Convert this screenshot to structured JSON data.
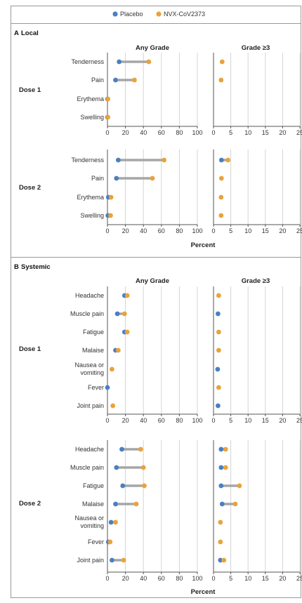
{
  "colors": {
    "placebo": "#4a7fc1",
    "vaccine": "#e8a33a",
    "connector": "#a6a6a6",
    "grid": "#d4d4d4",
    "axis": "#555555",
    "frame": "#999999"
  },
  "legend": {
    "placebo": "Placebo",
    "vaccine": "NVX-CoV2373"
  },
  "shared": {
    "any_grade_label": "Any Grade",
    "grade3_label": "Grade ≥3",
    "xlabel": "Percent",
    "dose1_label": "Dose 1",
    "dose2_label": "Dose 2"
  },
  "chart_data": [
    {
      "type": "dumbbell",
      "section_letter": "A",
      "section_title": "Local",
      "any_grade_xlim": [
        0,
        100
      ],
      "any_grade_ticks": [
        0,
        20,
        40,
        60,
        80,
        100
      ],
      "grade3_xlim": [
        0,
        25
      ],
      "grade3_ticks": [
        0,
        5,
        10,
        15,
        20,
        25
      ],
      "dose1": {
        "categories": [
          "Tenderness",
          "Pain",
          "Erythema",
          "Swelling"
        ],
        "any_grade": {
          "placebo": [
            13,
            9,
            0,
            0
          ],
          "vaccine": [
            46,
            30,
            0.5,
            0.5
          ]
        },
        "grade3": {
          "placebo": [
            null,
            null,
            null,
            null
          ],
          "vaccine": [
            2.5,
            2.2,
            null,
            null
          ]
        }
      },
      "dose2": {
        "categories": [
          "Tenderness",
          "Pain",
          "Erythema",
          "Swelling"
        ],
        "any_grade": {
          "placebo": [
            12,
            10,
            1,
            0.5
          ],
          "vaccine": [
            63,
            50,
            4,
            3.5
          ]
        },
        "grade3": {
          "placebo": [
            2.3,
            null,
            null,
            null
          ],
          "vaccine": [
            4.2,
            2.3,
            2.2,
            2.2
          ]
        }
      }
    },
    {
      "type": "dumbbell",
      "section_letter": "B",
      "section_title": "Systemic",
      "any_grade_xlim": [
        0,
        100
      ],
      "any_grade_ticks": [
        0,
        20,
        40,
        60,
        80,
        100
      ],
      "grade3_xlim": [
        0,
        25
      ],
      "grade3_ticks": [
        0,
        5,
        10,
        15,
        20,
        25
      ],
      "dose1": {
        "categories": [
          "Headache",
          "Muscle pain",
          "Fatigue",
          "Malaise",
          "Nausea or vomiting",
          "Fever",
          "Joint pain"
        ],
        "any_grade": {
          "placebo": [
            19,
            11,
            19,
            9,
            null,
            0,
            null
          ],
          "vaccine": [
            22,
            19,
            22,
            12,
            5,
            null,
            6
          ]
        },
        "grade3": {
          "placebo": [
            null,
            1.3,
            null,
            null,
            1.2,
            null,
            1.3
          ],
          "vaccine": [
            1.5,
            null,
            1.5,
            1.5,
            null,
            1.5,
            null
          ]
        }
      },
      "dose2": {
        "categories": [
          "Headache",
          "Muscle pain",
          "Fatigue",
          "Malaise",
          "Nausea or vomiting",
          "Fever",
          "Joint pain"
        ],
        "any_grade": {
          "placebo": [
            16,
            10,
            17,
            9,
            4,
            1,
            5
          ],
          "vaccine": [
            37,
            40,
            41,
            32,
            9,
            3,
            18
          ]
        },
        "grade3": {
          "placebo": [
            2.2,
            2.2,
            2.2,
            2.5,
            null,
            null,
            2.0
          ],
          "vaccine": [
            3.5,
            3.5,
            7.5,
            6.3,
            2.0,
            2.0,
            3.0
          ]
        }
      }
    }
  ]
}
